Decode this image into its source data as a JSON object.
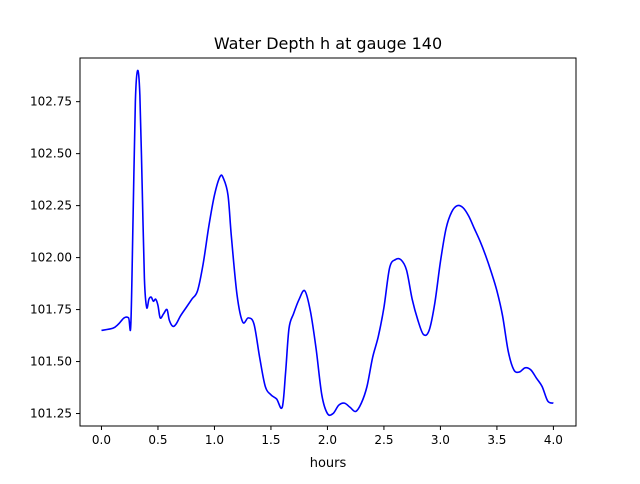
{
  "chart_data": {
    "type": "line",
    "title": "Water Depth h at gauge 140",
    "xlabel": "hours",
    "ylabel": "",
    "xlim": [
      -0.19,
      4.2
    ],
    "ylim": [
      101.19,
      102.96
    ],
    "xticks": [
      0.0,
      0.5,
      1.0,
      1.5,
      2.0,
      2.5,
      3.0,
      3.5,
      4.0
    ],
    "xtick_labels": [
      "0.0",
      "0.5",
      "1.0",
      "1.5",
      "2.0",
      "2.5",
      "3.0",
      "3.5",
      "4.0"
    ],
    "yticks": [
      101.25,
      101.5,
      101.75,
      102.0,
      102.25,
      102.5,
      102.75
    ],
    "ytick_labels": [
      "101.25",
      "101.50",
      "101.75",
      "102.00",
      "102.25",
      "102.50",
      "102.75"
    ],
    "grid": false,
    "series": [
      {
        "name": "",
        "color": "#0000ff",
        "x": [
          0.0,
          0.1,
          0.15,
          0.2,
          0.24,
          0.26,
          0.28,
          0.3,
          0.32,
          0.34,
          0.36,
          0.38,
          0.4,
          0.42,
          0.44,
          0.46,
          0.48,
          0.5,
          0.52,
          0.55,
          0.58,
          0.6,
          0.63,
          0.66,
          0.7,
          0.75,
          0.8,
          0.85,
          0.9,
          0.95,
          1.0,
          1.05,
          1.08,
          1.12,
          1.15,
          1.2,
          1.25,
          1.3,
          1.35,
          1.4,
          1.45,
          1.5,
          1.55,
          1.6,
          1.63,
          1.66,
          1.7,
          1.75,
          1.8,
          1.85,
          1.9,
          1.95,
          2.0,
          2.05,
          2.1,
          2.15,
          2.2,
          2.25,
          2.3,
          2.35,
          2.4,
          2.45,
          2.5,
          2.55,
          2.6,
          2.65,
          2.7,
          2.75,
          2.8,
          2.85,
          2.9,
          2.95,
          3.0,
          3.05,
          3.1,
          3.15,
          3.2,
          3.25,
          3.3,
          3.35,
          3.4,
          3.45,
          3.5,
          3.55,
          3.6,
          3.65,
          3.7,
          3.75,
          3.8,
          3.85,
          3.9,
          3.95,
          4.0
        ],
        "y": [
          101.65,
          101.66,
          101.68,
          101.71,
          101.71,
          101.68,
          102.2,
          102.75,
          102.9,
          102.78,
          102.35,
          101.9,
          101.76,
          101.8,
          101.81,
          101.79,
          101.8,
          101.77,
          101.71,
          101.73,
          101.75,
          101.7,
          101.67,
          101.68,
          101.72,
          101.76,
          101.8,
          101.84,
          101.97,
          102.15,
          102.3,
          102.39,
          102.38,
          102.3,
          102.1,
          101.82,
          101.69,
          101.71,
          101.68,
          101.52,
          101.38,
          101.34,
          101.32,
          101.28,
          101.45,
          101.66,
          101.73,
          101.8,
          101.84,
          101.74,
          101.56,
          101.34,
          101.25,
          101.25,
          101.29,
          101.3,
          101.28,
          101.26,
          101.3,
          101.38,
          101.52,
          101.62,
          101.76,
          101.95,
          101.99,
          101.99,
          101.94,
          101.8,
          101.7,
          101.63,
          101.65,
          101.78,
          101.98,
          102.14,
          102.22,
          102.25,
          102.24,
          102.2,
          102.14,
          102.08,
          102.01,
          101.93,
          101.84,
          101.72,
          101.55,
          101.46,
          101.45,
          101.47,
          101.46,
          101.42,
          101.38,
          101.31,
          101.3
        ]
      }
    ]
  }
}
